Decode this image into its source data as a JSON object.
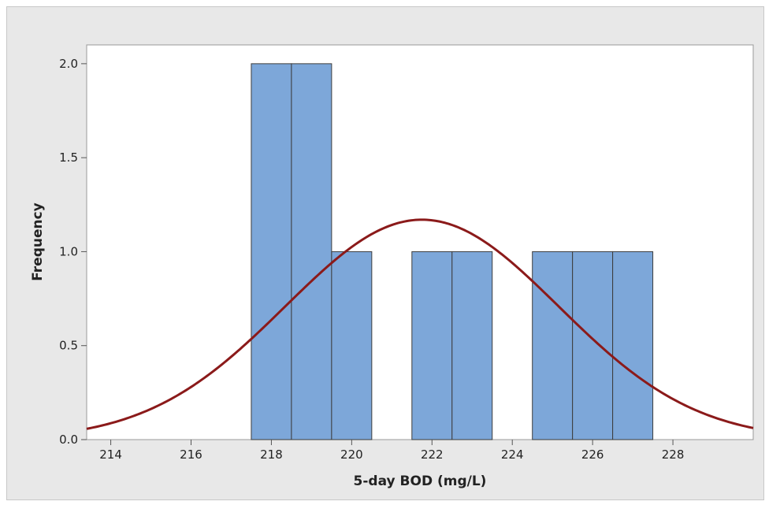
{
  "chart_data": {
    "type": "bar",
    "subtype": "histogram",
    "xlabel": "5-day BOD (mg/L)",
    "ylabel": "Frequency",
    "xlim": [
      213.4,
      230
    ],
    "ylim": [
      0,
      2.1
    ],
    "x_ticks": [
      214,
      216,
      218,
      220,
      222,
      224,
      226,
      228
    ],
    "y_ticks": [
      0.0,
      0.5,
      1.0,
      1.5,
      2.0
    ],
    "y_tick_labels": [
      "0.0",
      "0.5",
      "1.0",
      "1.5",
      "2.0"
    ],
    "bins": [
      {
        "center": 218,
        "value": 2
      },
      {
        "center": 219,
        "value": 2
      },
      {
        "center": 220,
        "value": 1
      },
      {
        "center": 222,
        "value": 1
      },
      {
        "center": 223,
        "value": 1
      },
      {
        "center": 225,
        "value": 1
      },
      {
        "center": 226,
        "value": 1
      },
      {
        "center": 227,
        "value": 1
      }
    ],
    "bin_width": 1,
    "fit_curve": {
      "type": "normal",
      "mean": 221.75,
      "stdev": 3.4,
      "peak": 1.17
    },
    "grid": false,
    "legend": "none",
    "colors": {
      "bar_fill": "#7da7d9",
      "bar_edge": "#3d3d3d",
      "curve": "#8b1a1a",
      "plot_bg": "#ffffff",
      "frame_bg": "#e8e8e8"
    }
  }
}
